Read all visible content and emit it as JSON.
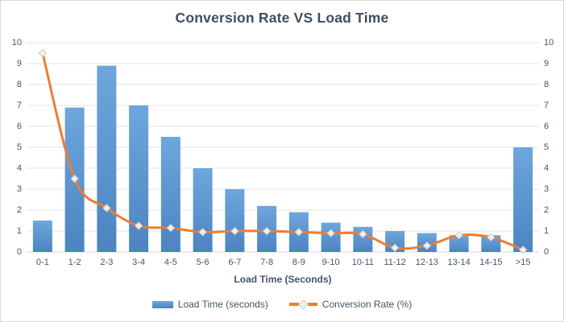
{
  "chart_data": {
    "type": "combo-bar-line",
    "title": "Conversion Rate VS Load Time",
    "xlabel": "Load Time (Seconds)",
    "categories": [
      "0-1",
      "1-2",
      "2-3",
      "3-4",
      "4-5",
      "5-6",
      "6-7",
      "7-8",
      "8-9",
      "9-10",
      "10-11",
      "11-12",
      "12-13",
      "13-14",
      "14-15",
      ">15"
    ],
    "series": [
      {
        "name": "Load Time (seconds)",
        "type": "bar",
        "color": "#5b9bd5",
        "color_top": "#6ea6dd",
        "color_bottom": "#4c84c1",
        "values": [
          1.5,
          6.9,
          8.9,
          7.0,
          5.5,
          4.0,
          3.0,
          2.2,
          1.9,
          1.4,
          1.2,
          1.0,
          0.9,
          0.8,
          0.8,
          5.0
        ]
      },
      {
        "name": "Conversion Rate (%)",
        "type": "line",
        "smooth": true,
        "color": "#ed7d31",
        "marker": "diamond",
        "marker_fill": "#f0f0f0",
        "marker_stroke": "#cccccc",
        "values": [
          9.5,
          3.5,
          2.1,
          1.25,
          1.15,
          0.95,
          1.0,
          1.0,
          0.95,
          0.9,
          0.85,
          0.2,
          0.3,
          0.8,
          0.7,
          0.1
        ]
      }
    ],
    "ylim": [
      0,
      10
    ],
    "ytick_step": 1,
    "y_axis_left": true,
    "y_axis_right": true,
    "grid": true,
    "gridline_color": "#e3e3e3",
    "zero_line_color": "#d8d8d8",
    "text_color": "#44546a",
    "legend_position": "bottom"
  }
}
